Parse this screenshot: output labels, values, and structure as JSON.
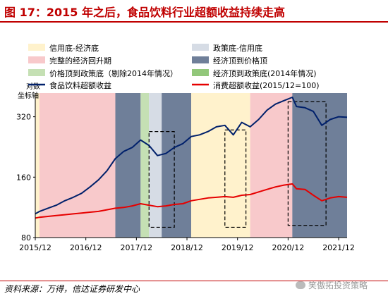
{
  "title": "图 17：2015 年之后，食品饮料行业超额收益持续走高",
  "source": "资料来源：万得，信达证券研发中心",
  "watermark": "笑傲拓投资策略",
  "chart_data": {
    "type": "line",
    "y_axis_label": "对数\n坐标轴",
    "y_scale": "log",
    "ylim": [
      80,
      420
    ],
    "y_ticks": [
      80,
      160,
      320
    ],
    "x_ticks": [
      "2015/12",
      "2016/12",
      "2017/12",
      "2018/12",
      "2019/12",
      "2020/12",
      "2021/12"
    ],
    "xlim": [
      "2015-12",
      "2022-02"
    ],
    "colors": {
      "title": "#c00000",
      "band_recovery": "#fff2cc",
      "band_full_cycle": "#f8c9cb",
      "band_policy_credit": "#d6dce5",
      "band_econ_top": "#6f7f99",
      "band_price_policy_ex2014": "#c5e0b4",
      "band_econ_policy_2014": "#92c77a",
      "food_series": "#00206b",
      "consumer_series": "#e60000"
    },
    "legend": [
      {
        "label": "信用底-经济底",
        "kind": "band",
        "color_key": "band_recovery"
      },
      {
        "label": "政策底-信用底",
        "kind": "band",
        "color_key": "band_policy_credit"
      },
      {
        "label": "完整的经济回升期",
        "kind": "band",
        "color_key": "band_full_cycle"
      },
      {
        "label": "经济顶到价格顶",
        "kind": "band",
        "color_key": "band_econ_top"
      },
      {
        "label": "价格顶到政策底（剔除2014年情况）",
        "kind": "band",
        "color_key": "band_price_policy_ex2014"
      },
      {
        "label": "经济顶到政策底(2014年情况)",
        "kind": "band",
        "color_key": "band_econ_policy_2014"
      },
      {
        "label": "食品饮料超额收益",
        "kind": "line",
        "color_key": "food_series"
      },
      {
        "label": "消费超额收益(2015/12=100)",
        "kind": "line",
        "color_key": "consumer_series"
      }
    ],
    "bands": [
      {
        "from": "2015-12",
        "to": "2016-01",
        "color_key": "band_recovery"
      },
      {
        "from": "2016-01",
        "to": "2017-07",
        "color_key": "band_full_cycle"
      },
      {
        "from": "2017-07",
        "to": "2018-01",
        "color_key": "band_econ_top"
      },
      {
        "from": "2018-01",
        "to": "2018-03",
        "color_key": "band_price_policy_ex2014"
      },
      {
        "from": "2018-03",
        "to": "2018-06",
        "color_key": "band_policy_credit"
      },
      {
        "from": "2018-06",
        "to": "2019-01",
        "color_key": "band_econ_top"
      },
      {
        "from": "2019-01",
        "to": "2020-03",
        "color_key": "band_recovery"
      },
      {
        "from": "2020-03",
        "to": "2021-01",
        "color_key": "band_full_cycle"
      },
      {
        "from": "2021-01",
        "to": "2022-02",
        "color_key": "band_econ_top"
      }
    ],
    "highlight_boxes": [
      {
        "from": "2018-03",
        "to": "2018-09",
        "y_from": 90,
        "y_to": 270
      },
      {
        "from": "2019-09",
        "to": "2020-02",
        "y_from": 90,
        "y_to": 275
      },
      {
        "from": "2020-12",
        "to": "2021-09",
        "y_from": 92,
        "y_to": 380
      }
    ],
    "series": [
      {
        "name": "食品饮料超额收益",
        "color_key": "food_series",
        "x": [
          "2015-12",
          "2016-01",
          "2016-03",
          "2016-05",
          "2016-07",
          "2016-09",
          "2016-11",
          "2017-01",
          "2017-03",
          "2017-05",
          "2017-07",
          "2017-09",
          "2017-11",
          "2018-01",
          "2018-03",
          "2018-05",
          "2018-07",
          "2018-09",
          "2018-11",
          "2019-01",
          "2019-03",
          "2019-05",
          "2019-07",
          "2019-09",
          "2019-11",
          "2020-01",
          "2020-03",
          "2020-05",
          "2020-07",
          "2020-09",
          "2020-11",
          "2021-01",
          "2021-02",
          "2021-04",
          "2021-06",
          "2021-08",
          "2021-10",
          "2021-12",
          "2022-02"
        ],
        "values": [
          105,
          108,
          112,
          116,
          122,
          127,
          133,
          143,
          155,
          172,
          198,
          215,
          225,
          245,
          230,
          205,
          210,
          225,
          235,
          255,
          260,
          270,
          285,
          290,
          260,
          300,
          285,
          310,
          345,
          370,
          385,
          400,
          360,
          355,
          340,
          290,
          310,
          320,
          318
        ]
      },
      {
        "name": "消费超额收益(2015/12=100)",
        "color_key": "consumer_series",
        "x": [
          "2015-12",
          "2016-01",
          "2016-03",
          "2016-05",
          "2016-07",
          "2016-09",
          "2016-11",
          "2017-01",
          "2017-03",
          "2017-05",
          "2017-07",
          "2017-09",
          "2017-11",
          "2018-01",
          "2018-03",
          "2018-05",
          "2018-07",
          "2018-09",
          "2018-11",
          "2019-01",
          "2019-03",
          "2019-05",
          "2019-07",
          "2019-09",
          "2019-11",
          "2020-01",
          "2020-03",
          "2020-05",
          "2020-07",
          "2020-09",
          "2020-11",
          "2021-01",
          "2021-02",
          "2021-04",
          "2021-06",
          "2021-08",
          "2021-10",
          "2021-12",
          "2022-02"
        ],
        "values": [
          100,
          101,
          102,
          103,
          104,
          105,
          106,
          107,
          108,
          110,
          112,
          113,
          115,
          118,
          116,
          114,
          115,
          117,
          118,
          122,
          124,
          126,
          127,
          128,
          127,
          130,
          131,
          135,
          139,
          143,
          146,
          148,
          140,
          139,
          130,
          122,
          126,
          128,
          127
        ]
      }
    ]
  }
}
